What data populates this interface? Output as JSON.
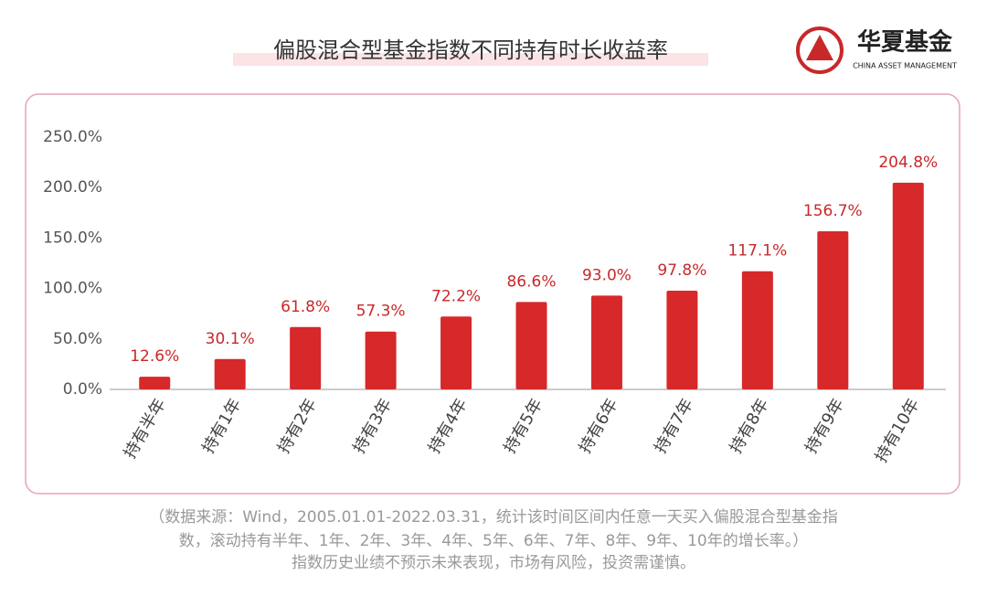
{
  "chart_data": {
    "type": "bar",
    "title": "偏股混合型基金指数不同持有时长收益率",
    "categories": [
      "持有半年",
      "持有1年",
      "持有2年",
      "持有3年",
      "持有4年",
      "持有5年",
      "持有6年",
      "持有7年",
      "持有8年",
      "持有9年",
      "持有10年"
    ],
    "values": [
      12.6,
      30.1,
      61.8,
      57.3,
      72.2,
      86.6,
      93.0,
      97.8,
      117.1,
      156.7,
      204.8
    ],
    "value_labels": [
      "12.6%",
      "30.1%",
      "61.8%",
      "57.3%",
      "72.2%",
      "86.6%",
      "93.0%",
      "97.8%",
      "117.1%",
      "156.7%",
      "204.8%"
    ],
    "color": "#d7282a",
    "ylim": [
      0,
      250
    ],
    "yticks": [
      {
        "value": 0,
        "label": "0.0%"
      },
      {
        "value": 50,
        "label": "50.0%"
      },
      {
        "value": 100,
        "label": "100.0%"
      },
      {
        "value": 150,
        "label": "150.0%"
      },
      {
        "value": 200,
        "label": "200.0%"
      },
      {
        "value": 250,
        "label": "250.0%"
      }
    ],
    "grid": false
  },
  "logo": {
    "name": "华夏基金",
    "english": "CHINA ASSET MANAGEMENT"
  },
  "footnote": [
    "（数据来源：Wind，2005.01.01-2022.03.31，统计该时间区间内任意一天买入偏股混合型基金指",
    "数，滚动持有半年、1年、2年、3年、4年、5年、6年、7年、8年、9年、10年的增长率。）",
    "指数历史业绩不预示未来表现，市场有风险，投资需谨慎。"
  ]
}
